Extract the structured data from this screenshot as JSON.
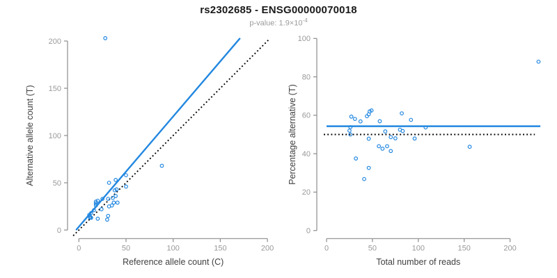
{
  "header": {
    "title": "rs2302685 - ENSG00000070018",
    "subtitle_prefix": "p-value: ",
    "p_mantissa": "1.9",
    "times_sign": "×",
    "p_base": "10",
    "p_exponent": "-4"
  },
  "colors": {
    "accent_blue": "#2287E0",
    "dotted_black": "#000000",
    "axis_gray": "#8c8c8c",
    "tick_label_gray": "#999999",
    "axis_title_dark": "#404040"
  },
  "chart_data": [
    {
      "type": "scatter",
      "panel": "left",
      "xlabel": "Reference allele count (C)",
      "ylabel": "Alternative allele count (T)",
      "xlim": [
        0,
        200
      ],
      "ylim": [
        0,
        200
      ],
      "xticks": [
        0,
        50,
        100,
        150,
        200
      ],
      "yticks": [
        0,
        50,
        100,
        150,
        200
      ],
      "grid": false,
      "points": [
        [
          11,
          16
        ],
        [
          13,
          18
        ],
        [
          16,
          21
        ],
        [
          18,
          26
        ],
        [
          18,
          28
        ],
        [
          18,
          30
        ],
        [
          20,
          31
        ],
        [
          25,
          33
        ],
        [
          32,
          50
        ],
        [
          39,
          53
        ],
        [
          12,
          14
        ],
        [
          12,
          13
        ],
        [
          13,
          13
        ],
        [
          31,
          33
        ],
        [
          38,
          42
        ],
        [
          40,
          43
        ],
        [
          50,
          58
        ],
        [
          24,
          22
        ],
        [
          36,
          34
        ],
        [
          39,
          36
        ],
        [
          50,
          46
        ],
        [
          32,
          25
        ],
        [
          35,
          26
        ],
        [
          37,
          29
        ],
        [
          41,
          29
        ],
        [
          20,
          12
        ],
        [
          31,
          15
        ],
        [
          30,
          11
        ],
        [
          88,
          68
        ],
        [
          28,
          203
        ]
      ],
      "lines": [
        {
          "name": "regression-line",
          "legend": "linear fit",
          "style": "solid",
          "color_key": "accent_blue",
          "points": [
            [
              -3,
              0
            ],
            [
              171,
              203
            ]
          ]
        },
        {
          "name": "identity-line",
          "legend": "y = x",
          "style": "dotted",
          "color_key": "dotted_black",
          "points": [
            [
              -6,
              -6
            ],
            [
              202,
              202
            ]
          ]
        }
      ]
    },
    {
      "type": "scatter",
      "panel": "right",
      "xlabel": "Total number of reads",
      "ylabel": "Percentage alternative (T)",
      "xlim": [
        0,
        231
      ],
      "ylim": [
        0,
        100
      ],
      "xticks": [
        0,
        50,
        100,
        150,
        200
      ],
      "yticks": [
        0,
        20,
        40,
        60,
        80,
        100
      ],
      "grid": false,
      "points": [
        [
          27,
          59.3
        ],
        [
          31,
          58.1
        ],
        [
          37,
          56.8
        ],
        [
          44,
          59.5
        ],
        [
          46,
          60.5
        ],
        [
          47,
          62
        ],
        [
          49,
          62.5
        ],
        [
          58,
          56.9
        ],
        [
          82,
          61
        ],
        [
          92,
          57.6
        ],
        [
          26,
          53.8
        ],
        [
          25,
          52
        ],
        [
          26,
          50
        ],
        [
          64,
          51.6
        ],
        [
          80,
          52.5
        ],
        [
          83,
          51.8
        ],
        [
          108,
          53.7
        ],
        [
          46,
          47.8
        ],
        [
          70,
          48.6
        ],
        [
          75,
          48
        ],
        [
          96,
          47.9
        ],
        [
          57,
          43.9
        ],
        [
          61,
          42.6
        ],
        [
          66,
          43.9
        ],
        [
          70,
          41.4
        ],
        [
          32,
          37.5
        ],
        [
          46,
          32.6
        ],
        [
          41,
          26.8
        ],
        [
          156,
          43.6
        ],
        [
          231,
          87.9
        ]
      ],
      "lines": [
        {
          "name": "mean-percentage-line",
          "legend": "mean alternative %",
          "style": "solid",
          "color_key": "accent_blue",
          "points": [
            [
              0,
              54.3
            ],
            [
              233,
              54.3
            ]
          ]
        },
        {
          "name": "null-50pct-line",
          "legend": "50% expected",
          "style": "dotted",
          "color_key": "dotted_black",
          "points": [
            [
              -3,
              50
            ],
            [
              227,
              50
            ]
          ]
        }
      ]
    }
  ]
}
